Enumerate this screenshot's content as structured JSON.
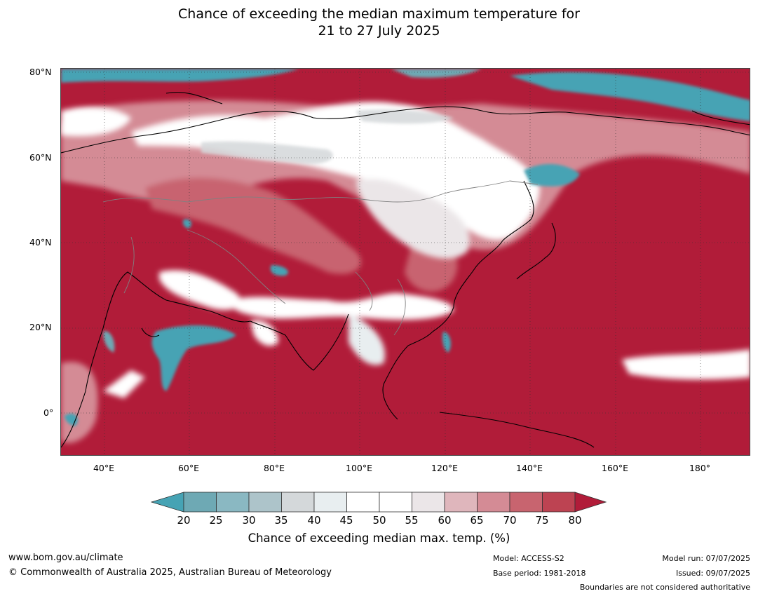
{
  "title": {
    "line1": "Chance of exceeding the median maximum temperature for",
    "line2": "21 to 27 July 2025"
  },
  "map": {
    "lat_labels": [
      "80°N",
      "60°N",
      "40°N",
      "20°N",
      "0°"
    ],
    "lon_labels": [
      "40°E",
      "60°E",
      "80°E",
      "100°E",
      "120°E",
      "140°E",
      "160°E",
      "180°"
    ],
    "colors": {
      "above_80": "#b11c39",
      "below_20": "#46a3b4",
      "neutral": "#ffffff",
      "coastline": "#000000",
      "border": "#808080"
    }
  },
  "legend": {
    "ticks": [
      "20",
      "25",
      "30",
      "35",
      "40",
      "45",
      "50",
      "55",
      "60",
      "65",
      "70",
      "75",
      "80"
    ],
    "colors": [
      "#46a3b4",
      "#6ea9b4",
      "#8ab8c2",
      "#adc4ca",
      "#d4d8da",
      "#e8eef0",
      "#ffffff",
      "#ffffff",
      "#ebe6e8",
      "#dfb6bc",
      "#d48b95",
      "#c8646f",
      "#bd4352",
      "#b11c39"
    ],
    "label": "Chance of exceeding median max. temp. (%)"
  },
  "footer": {
    "website": "www.bom.gov.au/climate",
    "copyright": "© Commonwealth of Australia 2025, Australian Bureau of Meteorology",
    "model": "Model: ACCESS-S2",
    "base_period": "Base period: 1981-2018",
    "model_run": "Model run: 07/07/2025",
    "issued": "Issued: 09/07/2025",
    "disclaimer": "Boundaries are not considered authoritative"
  }
}
